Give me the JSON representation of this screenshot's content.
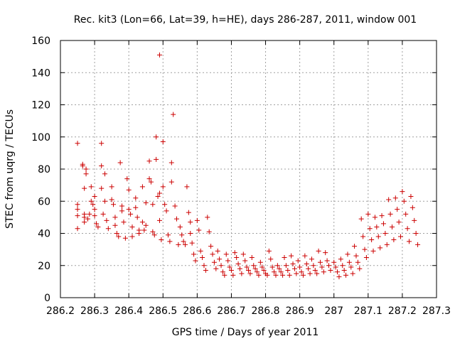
{
  "chart_data": {
    "type": "scatter",
    "title": "Rec. kit3 (Lon=66, Lat=39, h=HE), days 286-287, 2011, window 001",
    "xlabel": "GPS time / Days of year 2011",
    "ylabel": "STEC from uqrg / TECUs",
    "xlim": [
      286.2,
      287.3
    ],
    "ylim": [
      0,
      160
    ],
    "grid": true,
    "legend": "none",
    "marker": "plus",
    "color": "#cc0000",
    "x_ticks": [
      "286.2",
      "286.3",
      "286.4",
      "286.5",
      "286.6",
      "286.7",
      "286.8",
      "286.9",
      "287",
      "287.1",
      "287.2",
      "287.3"
    ],
    "x_tick_values": [
      286.2,
      286.3,
      286.4,
      286.5,
      286.6,
      286.7,
      286.8,
      286.9,
      287.0,
      287.1,
      287.2,
      287.3
    ],
    "y_ticks": [
      "0",
      "20",
      "40",
      "60",
      "80",
      "100",
      "120",
      "140",
      "160"
    ],
    "y_tick_values": [
      0,
      20,
      40,
      60,
      80,
      100,
      120,
      140,
      160
    ],
    "series": [
      {
        "name": "",
        "points": [
          [
            286.25,
            96
          ],
          [
            286.25,
            58
          ],
          [
            286.25,
            55
          ],
          [
            286.25,
            51
          ],
          [
            286.25,
            43
          ],
          [
            286.265,
            83
          ],
          [
            286.265,
            82
          ],
          [
            286.27,
            68
          ],
          [
            286.275,
            80
          ],
          [
            286.275,
            77
          ],
          [
            286.27,
            52
          ],
          [
            286.27,
            50
          ],
          [
            286.27,
            47
          ],
          [
            286.28,
            49
          ],
          [
            286.285,
            52
          ],
          [
            286.29,
            69
          ],
          [
            286.29,
            60
          ],
          [
            286.295,
            58
          ],
          [
            286.3,
            63
          ],
          [
            286.3,
            55
          ],
          [
            286.3,
            51
          ],
          [
            286.305,
            46
          ],
          [
            286.31,
            44
          ],
          [
            286.32,
            96
          ],
          [
            286.32,
            82
          ],
          [
            286.32,
            68
          ],
          [
            286.325,
            52
          ],
          [
            286.33,
            77
          ],
          [
            286.33,
            60
          ],
          [
            286.335,
            48
          ],
          [
            286.34,
            43
          ],
          [
            286.35,
            69
          ],
          [
            286.35,
            61
          ],
          [
            286.355,
            58
          ],
          [
            286.36,
            50
          ],
          [
            286.36,
            45
          ],
          [
            286.365,
            40
          ],
          [
            286.37,
            38
          ],
          [
            286.375,
            84
          ],
          [
            286.38,
            57
          ],
          [
            286.38,
            54
          ],
          [
            286.385,
            47
          ],
          [
            286.39,
            37
          ],
          [
            286.395,
            74
          ],
          [
            286.4,
            67
          ],
          [
            286.4,
            55
          ],
          [
            286.405,
            52
          ],
          [
            286.41,
            44
          ],
          [
            286.41,
            38
          ],
          [
            286.42,
            62
          ],
          [
            286.42,
            56
          ],
          [
            286.425,
            50
          ],
          [
            286.43,
            42
          ],
          [
            286.43,
            40
          ],
          [
            286.44,
            69
          ],
          [
            286.44,
            47
          ],
          [
            286.445,
            42
          ],
          [
            286.45,
            59
          ],
          [
            286.45,
            45
          ],
          [
            286.46,
            85
          ],
          [
            286.46,
            74
          ],
          [
            286.465,
            72
          ],
          [
            286.47,
            58
          ],
          [
            286.47,
            41
          ],
          [
            286.475,
            39
          ],
          [
            286.48,
            100
          ],
          [
            286.48,
            86
          ],
          [
            286.485,
            63
          ],
          [
            286.49,
            151
          ],
          [
            286.49,
            65
          ],
          [
            286.49,
            48
          ],
          [
            286.495,
            36
          ],
          [
            286.5,
            97
          ],
          [
            286.5,
            69
          ],
          [
            286.505,
            58
          ],
          [
            286.51,
            54
          ],
          [
            286.515,
            39
          ],
          [
            286.52,
            35
          ],
          [
            286.525,
            84
          ],
          [
            286.525,
            72
          ],
          [
            286.53,
            114
          ],
          [
            286.535,
            57
          ],
          [
            286.54,
            49
          ],
          [
            286.545,
            33
          ],
          [
            286.55,
            44
          ],
          [
            286.555,
            39
          ],
          [
            286.56,
            35
          ],
          [
            286.565,
            33
          ],
          [
            286.57,
            69
          ],
          [
            286.575,
            53
          ],
          [
            286.58,
            47
          ],
          [
            286.58,
            40
          ],
          [
            286.585,
            34
          ],
          [
            286.59,
            27
          ],
          [
            286.595,
            23
          ],
          [
            286.6,
            48
          ],
          [
            286.605,
            42
          ],
          [
            286.61,
            29
          ],
          [
            286.615,
            25
          ],
          [
            286.62,
            20
          ],
          [
            286.625,
            17
          ],
          [
            286.63,
            50
          ],
          [
            286.635,
            41
          ],
          [
            286.64,
            32
          ],
          [
            286.645,
            27
          ],
          [
            286.65,
            22
          ],
          [
            286.655,
            18
          ],
          [
            286.66,
            29
          ],
          [
            286.665,
            24
          ],
          [
            286.67,
            20
          ],
          [
            286.675,
            16
          ],
          [
            286.68,
            14
          ],
          [
            286.685,
            27
          ],
          [
            286.69,
            23
          ],
          [
            286.695,
            19
          ],
          [
            286.7,
            17
          ],
          [
            286.705,
            14
          ],
          [
            286.71,
            28
          ],
          [
            286.715,
            25
          ],
          [
            286.72,
            21
          ],
          [
            286.725,
            18
          ],
          [
            286.73,
            15
          ],
          [
            286.735,
            27
          ],
          [
            286.74,
            23
          ],
          [
            286.745,
            19
          ],
          [
            286.75,
            17
          ],
          [
            286.755,
            15
          ],
          [
            286.76,
            25
          ],
          [
            286.765,
            20
          ],
          [
            286.77,
            18
          ],
          [
            286.775,
            16
          ],
          [
            286.78,
            14
          ],
          [
            286.785,
            22
          ],
          [
            286.79,
            19
          ],
          [
            286.795,
            17
          ],
          [
            286.8,
            15
          ],
          [
            286.805,
            14
          ],
          [
            286.81,
            29
          ],
          [
            286.815,
            24
          ],
          [
            286.82,
            19
          ],
          [
            286.825,
            16
          ],
          [
            286.83,
            14
          ],
          [
            286.835,
            20
          ],
          [
            286.84,
            18
          ],
          [
            286.845,
            16
          ],
          [
            286.85,
            14
          ],
          [
            286.855,
            25
          ],
          [
            286.86,
            20
          ],
          [
            286.865,
            17
          ],
          [
            286.87,
            14
          ],
          [
            286.875,
            26
          ],
          [
            286.88,
            21
          ],
          [
            286.885,
            18
          ],
          [
            286.89,
            15
          ],
          [
            286.895,
            23
          ],
          [
            286.9,
            19
          ],
          [
            286.905,
            16
          ],
          [
            286.91,
            14
          ],
          [
            286.915,
            26
          ],
          [
            286.92,
            21
          ],
          [
            286.925,
            18
          ],
          [
            286.93,
            15
          ],
          [
            286.935,
            24
          ],
          [
            286.94,
            20
          ],
          [
            286.945,
            17
          ],
          [
            286.95,
            15
          ],
          [
            286.955,
            29
          ],
          [
            286.96,
            22
          ],
          [
            286.965,
            19
          ],
          [
            286.97,
            16
          ],
          [
            286.975,
            28
          ],
          [
            286.98,
            23
          ],
          [
            286.985,
            20
          ],
          [
            286.99,
            17
          ],
          [
            287.0,
            22
          ],
          [
            287.005,
            19
          ],
          [
            287.01,
            16
          ],
          [
            287.015,
            13
          ],
          [
            287.02,
            24
          ],
          [
            287.025,
            20
          ],
          [
            287.03,
            17
          ],
          [
            287.035,
            14
          ],
          [
            287.04,
            27
          ],
          [
            287.045,
            22
          ],
          [
            287.05,
            19
          ],
          [
            287.055,
            15
          ],
          [
            287.06,
            32
          ],
          [
            287.065,
            26
          ],
          [
            287.07,
            22
          ],
          [
            287.075,
            18
          ],
          [
            287.08,
            49
          ],
          [
            287.085,
            38
          ],
          [
            287.09,
            30
          ],
          [
            287.095,
            25
          ],
          [
            287.1,
            52
          ],
          [
            287.105,
            43
          ],
          [
            287.11,
            36
          ],
          [
            287.115,
            29
          ],
          [
            287.12,
            50
          ],
          [
            287.125,
            44
          ],
          [
            287.13,
            38
          ],
          [
            287.135,
            31
          ],
          [
            287.14,
            51
          ],
          [
            287.145,
            46
          ],
          [
            287.15,
            40
          ],
          [
            287.155,
            33
          ],
          [
            287.16,
            61
          ],
          [
            287.165,
            52
          ],
          [
            287.17,
            44
          ],
          [
            287.175,
            36
          ],
          [
            287.18,
            62
          ],
          [
            287.185,
            55
          ],
          [
            287.19,
            47
          ],
          [
            287.195,
            38
          ],
          [
            287.2,
            66
          ],
          [
            287.205,
            60
          ],
          [
            287.21,
            52
          ],
          [
            287.215,
            43
          ],
          [
            287.22,
            35
          ],
          [
            287.225,
            63
          ],
          [
            287.23,
            56
          ],
          [
            287.235,
            48
          ],
          [
            287.24,
            40
          ],
          [
            287.245,
            33
          ]
        ]
      }
    ]
  }
}
